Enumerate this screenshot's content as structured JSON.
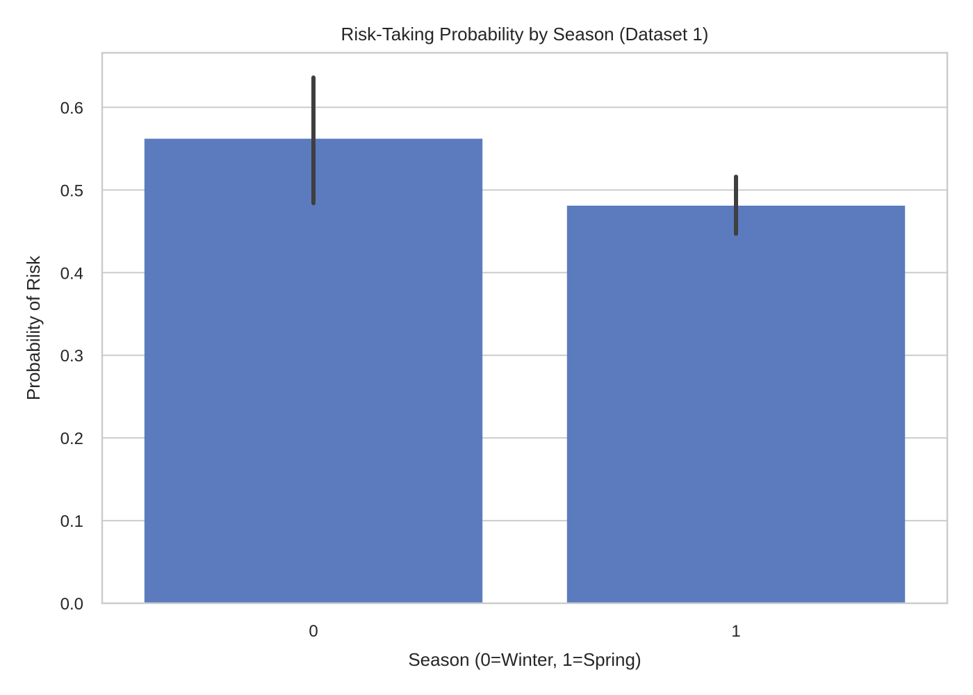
{
  "chart_data": {
    "type": "bar",
    "title": "Risk-Taking Probability by Season (Dataset 1)",
    "xlabel": "Season (0=Winter, 1=Spring)",
    "ylabel": "Probability of Risk",
    "categories": [
      "0",
      "1"
    ],
    "values": [
      0.562,
      0.481
    ],
    "error_bars": [
      {
        "low": 0.484,
        "high": 0.636
      },
      {
        "low": 0.447,
        "high": 0.516
      }
    ],
    "ylim": [
      0,
      0.6659
    ],
    "yticks": [
      0.0,
      0.1,
      0.2,
      0.3,
      0.4,
      0.5,
      0.6
    ],
    "ytick_labels": [
      "0.0",
      "0.1",
      "0.2",
      "0.3",
      "0.4",
      "0.5",
      "0.6"
    ],
    "grid": "y",
    "legend": "none",
    "colors": {
      "bar": "#5b7bbe",
      "error_bar": "#3f3f3f",
      "grid": "#cccccc",
      "frame": "#cccccc",
      "text": "#262626"
    }
  }
}
